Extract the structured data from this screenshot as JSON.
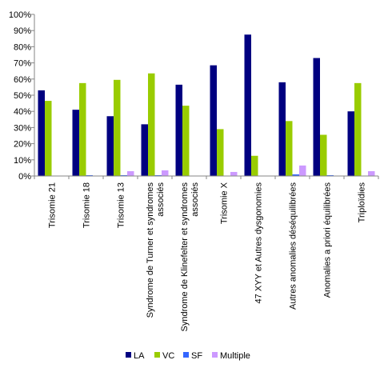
{
  "chart_data": {
    "type": "bar",
    "categories": [
      [
        "Trisomie 21"
      ],
      [
        "Trisomie 18"
      ],
      [
        "Trisomie 13"
      ],
      [
        "Syndrome de Turner et syndromes",
        "associés"
      ],
      [
        "Syndrome de Klinefelter et syndromes",
        "associés"
      ],
      [
        "Trisomie X"
      ],
      [
        "47 XYY et Autres dysgonomies"
      ],
      [
        "Autres anomalies déséquilibrées"
      ],
      [
        "Anomalies a priori équilibrées"
      ],
      [
        "Triploïdies"
      ]
    ],
    "series": [
      {
        "name": "LA",
        "color": "#000080",
        "values": [
          53,
          41,
          37,
          32,
          56.5,
          68.5,
          87.5,
          58,
          73,
          40
        ]
      },
      {
        "name": "VC",
        "color": "#99CC00",
        "values": [
          46.5,
          57.5,
          59.5,
          63.5,
          43.5,
          29,
          12.5,
          34,
          25.5,
          57.5
        ]
      },
      {
        "name": "SF",
        "color": "#3366FF",
        "values": [
          0,
          0.5,
          0.5,
          0.5,
          0,
          0,
          0,
          1,
          0.5,
          0
        ]
      },
      {
        "name": "Multiple",
        "color": "#CC99FF",
        "values": [
          0,
          0,
          3,
          3.5,
          0,
          2.5,
          0,
          6.5,
          0,
          3
        ]
      }
    ],
    "ylim": [
      0,
      100
    ],
    "yticks": [
      "0%",
      "10%",
      "20%",
      "30%",
      "40%",
      "50%",
      "60%",
      "70%",
      "80%",
      "90%",
      "100%"
    ],
    "legend_position": "bottom",
    "grid": false
  }
}
